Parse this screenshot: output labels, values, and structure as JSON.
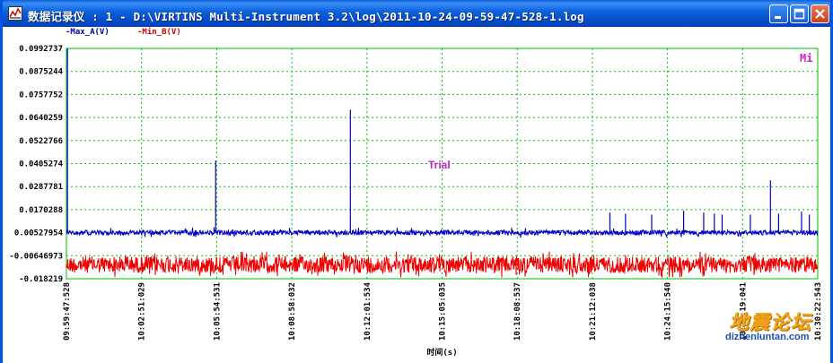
{
  "window": {
    "title": "数据记录仪 : 1 - D:\\VIRTINS Multi-Instrument 3.2\\log\\2011-10-24-09-59-47-528-1.log",
    "app_icon": "chart-icon",
    "controls": [
      "minimize-icon",
      "maximize-icon",
      "close-icon"
    ]
  },
  "legend": {
    "series_a": "-Max_A(V)",
    "series_b": "-Min_B(V)"
  },
  "overlay": {
    "trial": "Trial",
    "corner_tag": "Mi"
  },
  "watermark": {
    "site_cn": "地震论坛",
    "site_url": "dizhenluntan.com"
  },
  "colors": {
    "series_a": "#0000cc",
    "series_b": "#ee0000",
    "grid": "#00c000",
    "trial": "#cc22cc",
    "watermark_cn": "#f2a51a",
    "watermark_url": "#1a4fb5"
  },
  "chart_data": {
    "type": "line",
    "xlabel": "时间(s)",
    "ylabel": "",
    "ylim": [
      -0.018219,
      0.0992737
    ],
    "yticks": [
      "0.0992737",
      "0.0875244",
      "0.0757752",
      "0.0640259",
      "0.0522766",
      "0.0405274",
      "0.0287781",
      "0.0170288",
      "0.00527954",
      "-0.00646973",
      "-0.018219"
    ],
    "xticks": [
      "09:59:47:528",
      "10:02:51:029",
      "10:05:54:531",
      "10:08:58:032",
      "10:12:01:534",
      "10:15:05:035",
      "10:18:08:537",
      "10:21:12:038",
      "10:24:15:540",
      "10:27:19:041",
      "10:30:22:543"
    ],
    "grid": true,
    "series": [
      {
        "name": "Max_A(V)",
        "baseline": 0.0053,
        "spikes": [
          {
            "x": "09:59:50",
            "y": 0.0992
          },
          {
            "x": "10:05:52",
            "y": 0.042
          },
          {
            "x": "10:05:48",
            "y": 0.008
          },
          {
            "x": "10:11:21",
            "y": 0.068
          },
          {
            "x": "10:21:55",
            "y": 0.0155
          },
          {
            "x": "10:22:33",
            "y": 0.015
          },
          {
            "x": "10:23:37",
            "y": 0.0145
          },
          {
            "x": "10:24:55",
            "y": 0.0165
          },
          {
            "x": "10:25:44",
            "y": 0.0155
          },
          {
            "x": "10:26:10",
            "y": 0.015
          },
          {
            "x": "10:26:29",
            "y": 0.0145
          },
          {
            "x": "10:27:38",
            "y": 0.0145
          },
          {
            "x": "10:28:27",
            "y": 0.032
          },
          {
            "x": "10:28:47",
            "y": 0.015
          },
          {
            "x": "10:29:43",
            "y": 0.016
          },
          {
            "x": "10:30:02",
            "y": 0.0145
          }
        ]
      },
      {
        "name": "Min_B(V)",
        "baseline": -0.011
      }
    ]
  }
}
